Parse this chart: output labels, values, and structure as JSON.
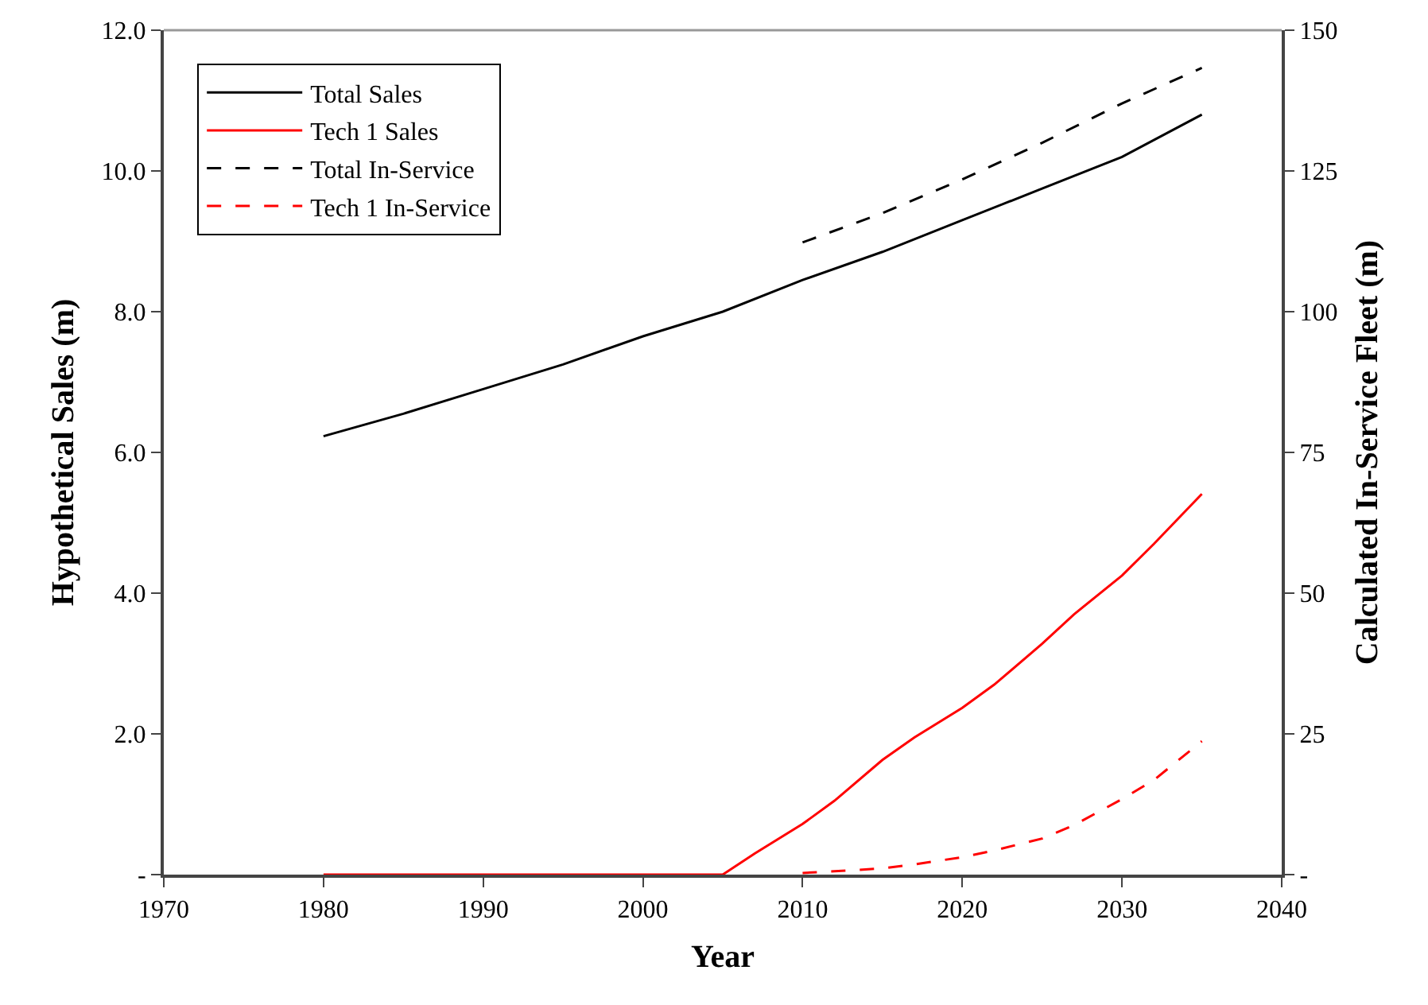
{
  "chart_data": {
    "type": "line",
    "xlabel": "Year",
    "ylabel": "Hypothetical Sales (m)",
    "y2label": "Calculated In-Service Fleet (m)",
    "xlim": [
      1970,
      2040
    ],
    "xticks": [
      1970,
      1980,
      1990,
      2000,
      2010,
      2020,
      2030,
      2040
    ],
    "ylim": [
      0,
      12
    ],
    "yticks": [
      {
        "value": 0,
        "label": "-"
      },
      {
        "value": 2,
        "label": "2.0"
      },
      {
        "value": 4,
        "label": "4.0"
      },
      {
        "value": 6,
        "label": "6.0"
      },
      {
        "value": 8,
        "label": "8.0"
      },
      {
        "value": 10,
        "label": "10.0"
      },
      {
        "value": 12,
        "label": "12.0"
      }
    ],
    "y2lim": [
      0,
      150
    ],
    "y2ticks": [
      {
        "value": 0,
        "label": "-"
      },
      25,
      50,
      75,
      100,
      125,
      150
    ],
    "legend": "top left",
    "marker": "none",
    "series": [
      {
        "name": "Total Sales",
        "color": "#000000",
        "line_style": "solid",
        "x": [
          1980,
          1985,
          1990,
          1995,
          2000,
          2005,
          2010,
          2015,
          2020,
          2025,
          2030,
          2035
        ],
        "values": [
          6.23,
          6.55,
          6.9,
          7.25,
          7.65,
          8.0,
          8.45,
          8.85,
          9.3,
          9.75,
          10.2,
          10.8
        ]
      },
      {
        "name": "Tech 1 Sales",
        "color": "#ff0000",
        "line_style": "solid",
        "x": [
          1980,
          1985,
          1990,
          1995,
          2000,
          2005,
          2007,
          2010,
          2012,
          2015,
          2017,
          2020,
          2022,
          2025,
          2027,
          2030,
          2032,
          2035
        ],
        "values": [
          0,
          0,
          0,
          0,
          0,
          0,
          0.3,
          0.72,
          1.05,
          1.63,
          1.95,
          2.37,
          2.7,
          3.28,
          3.7,
          4.25,
          4.7,
          5.41
        ]
      },
      {
        "name": "Total In-Service",
        "color": "#000000",
        "line_style": "dashed",
        "axis": "y2",
        "x": [
          2010,
          2015,
          2020,
          2025,
          2030,
          2035
        ],
        "values": [
          112.3,
          117.5,
          123.5,
          130,
          137,
          143.3
        ]
      },
      {
        "name": "Tech 1 In-Service",
        "color": "#ff0000",
        "line_style": "dashed",
        "axis": "y2",
        "x": [
          2010,
          2012,
          2015,
          2017,
          2020,
          2022,
          2025,
          2027,
          2030,
          2032,
          2035
        ],
        "values": [
          0.3,
          0.6,
          1.1,
          1.8,
          3.1,
          4.3,
          6.4,
          8.8,
          13.4,
          16.8,
          23.7
        ]
      }
    ]
  }
}
